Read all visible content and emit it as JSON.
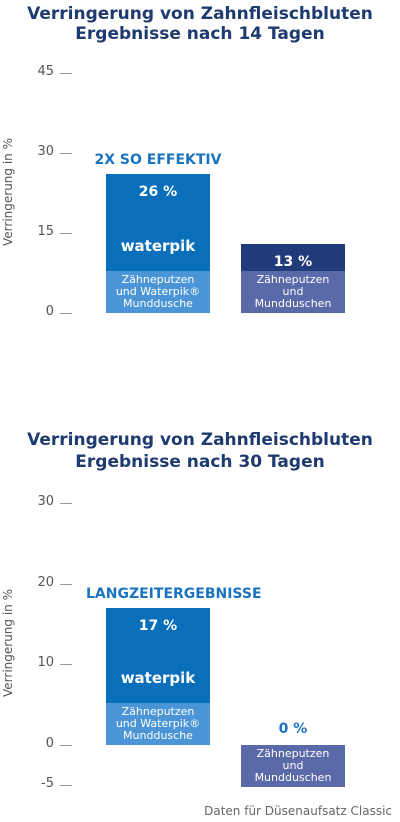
{
  "chart_data": [
    {
      "type": "bar",
      "title": "Verringerung von Zahnfleischbluten",
      "subtitle": "Ergebnisse nach 14 Tagen",
      "ylabel": "Verringerung in %",
      "annotation": "2X SO EFFEKTIV",
      "logo": "waterpik",
      "categories": [
        "Zähneputzen und Waterpik® Mundduschе",
        "Zähneputzen und Mundduschen"
      ],
      "values": [
        26,
        13
      ],
      "value_labels": [
        "26 %",
        "13 %"
      ],
      "colors": [
        "#0a6fba",
        "#203b7a"
      ],
      "caption_colors": [
        "#4b95d6",
        "#5a6aa8"
      ],
      "ylim": [
        0,
        45
      ],
      "yticks": [
        0,
        15,
        30,
        45
      ]
    },
    {
      "type": "bar",
      "title": "Verringerung von Zahnfleischbluten",
      "subtitle": "Ergebnisse nach 30 Tagen",
      "ylabel": "Verringerung in %",
      "annotation": "LANGZEITERGEBNISSE",
      "logo": "waterpik",
      "categories": [
        "Zähneputzen und Waterpik® Mundduschе",
        "Zähneputzen und Mundduschen"
      ],
      "values": [
        17,
        0
      ],
      "value_labels": [
        "17 %",
        "0 %"
      ],
      "colors": [
        "#0a6fba",
        "#203b7a"
      ],
      "caption_colors": [
        "#4b95d6",
        "#5a6aa8"
      ],
      "ylim": [
        -5,
        30
      ],
      "yticks": [
        -5,
        0,
        10,
        20,
        30
      ]
    }
  ],
  "footer": "Daten für Düsenaufsatz Classic"
}
